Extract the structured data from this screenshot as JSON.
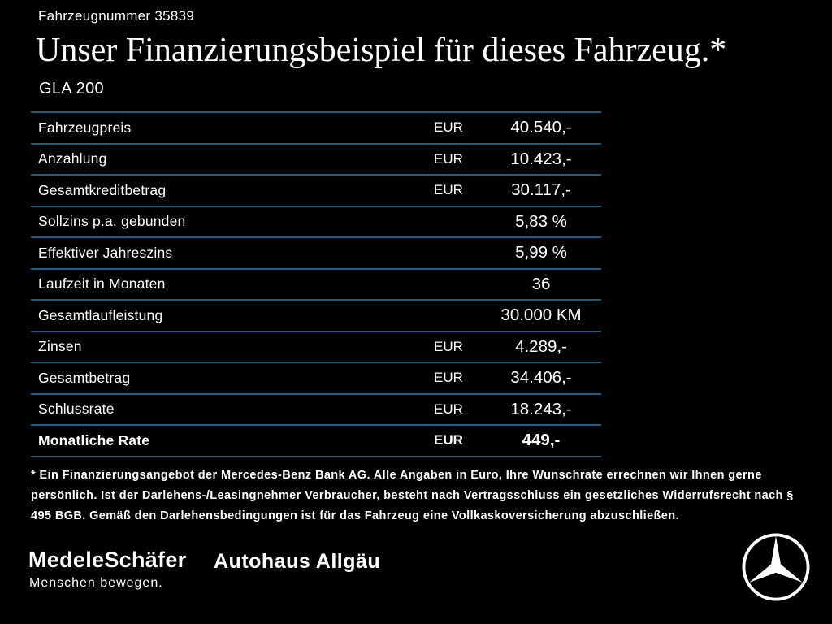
{
  "header": {
    "vehicle_number": "Fahrzeugnummer 35839",
    "title": "Unser Finanzierungsbeispiel für dieses Fahrzeug.*",
    "model": "GLA 200"
  },
  "table": {
    "rows": [
      {
        "label": "Fahrzeugpreis",
        "currency": "EUR",
        "value": "40.540,-",
        "bold": false
      },
      {
        "label": "Anzahlung",
        "currency": "EUR",
        "value": "10.423,-",
        "bold": false
      },
      {
        "label": "Gesamtkreditbetrag",
        "currency": "EUR",
        "value": "30.117,-",
        "bold": false
      },
      {
        "label": "Sollzins p.a. gebunden",
        "currency": "",
        "value": "5,83 %",
        "bold": false
      },
      {
        "label": "Effektiver Jahreszins",
        "currency": "",
        "value": "5,99 %",
        "bold": false
      },
      {
        "label": "Laufzeit in Monaten",
        "currency": "",
        "value": "36",
        "bold": false
      },
      {
        "label": "Gesamtlaufleistung",
        "currency": "",
        "value": "30.000 KM",
        "bold": false
      },
      {
        "label": "Zinsen",
        "currency": "EUR",
        "value": "4.289,-",
        "bold": false
      },
      {
        "label": "Gesamtbetrag",
        "currency": "EUR",
        "value": "34.406,-",
        "bold": false
      },
      {
        "label": "Schlussrate",
        "currency": "EUR",
        "value": "18.243,-",
        "bold": false
      },
      {
        "label": "Monatliche Rate",
        "currency": "EUR",
        "value": "449,-",
        "bold": true
      }
    ]
  },
  "footnote": "* Ein Finanzierungsangebot der Mercedes-Benz Bank AG. Alle Angaben in Euro, Ihre Wunschrate errechnen wir Ihnen gerne persönlich. Ist der Darlehens-/Leasingnehmer Verbraucher, besteht nach Vertragsschluss ein gesetzliches Widerrufsrecht nach § 495 BGB. Gemäß den Darlehensbedingungen ist für das Fahrzeug eine Vollkaskoversicherung abzuschließen.",
  "footer": {
    "dealer1": "MedeleSchäfer",
    "dealer1_tagline": "Menschen bewegen.",
    "dealer2": "Autohaus Allgäu",
    "brand_logo": "mercedes-star-icon"
  },
  "colors": {
    "background": "#000000",
    "text": "#ffffff",
    "divider": "#1d5f82"
  }
}
